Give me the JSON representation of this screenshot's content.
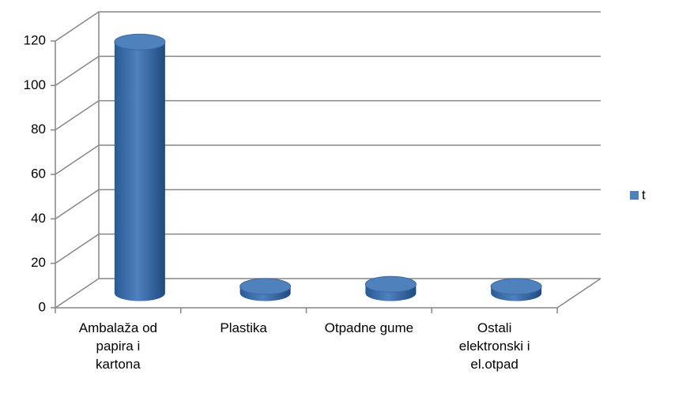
{
  "chart_data": {
    "type": "bar3d",
    "categories": [
      "Ambalaža od papira i kartona",
      "Plastika",
      "Otpadne gume",
      "Ostali elektronski i el.otpad"
    ],
    "series": [
      {
        "name": "t",
        "color": "#4f81bd",
        "values": [
          113,
          3,
          4,
          3
        ]
      }
    ],
    "ylim": [
      0,
      120
    ],
    "yticks": [
      0,
      20,
      40,
      60,
      80,
      100,
      120
    ],
    "grid": true,
    "legend": "right"
  }
}
